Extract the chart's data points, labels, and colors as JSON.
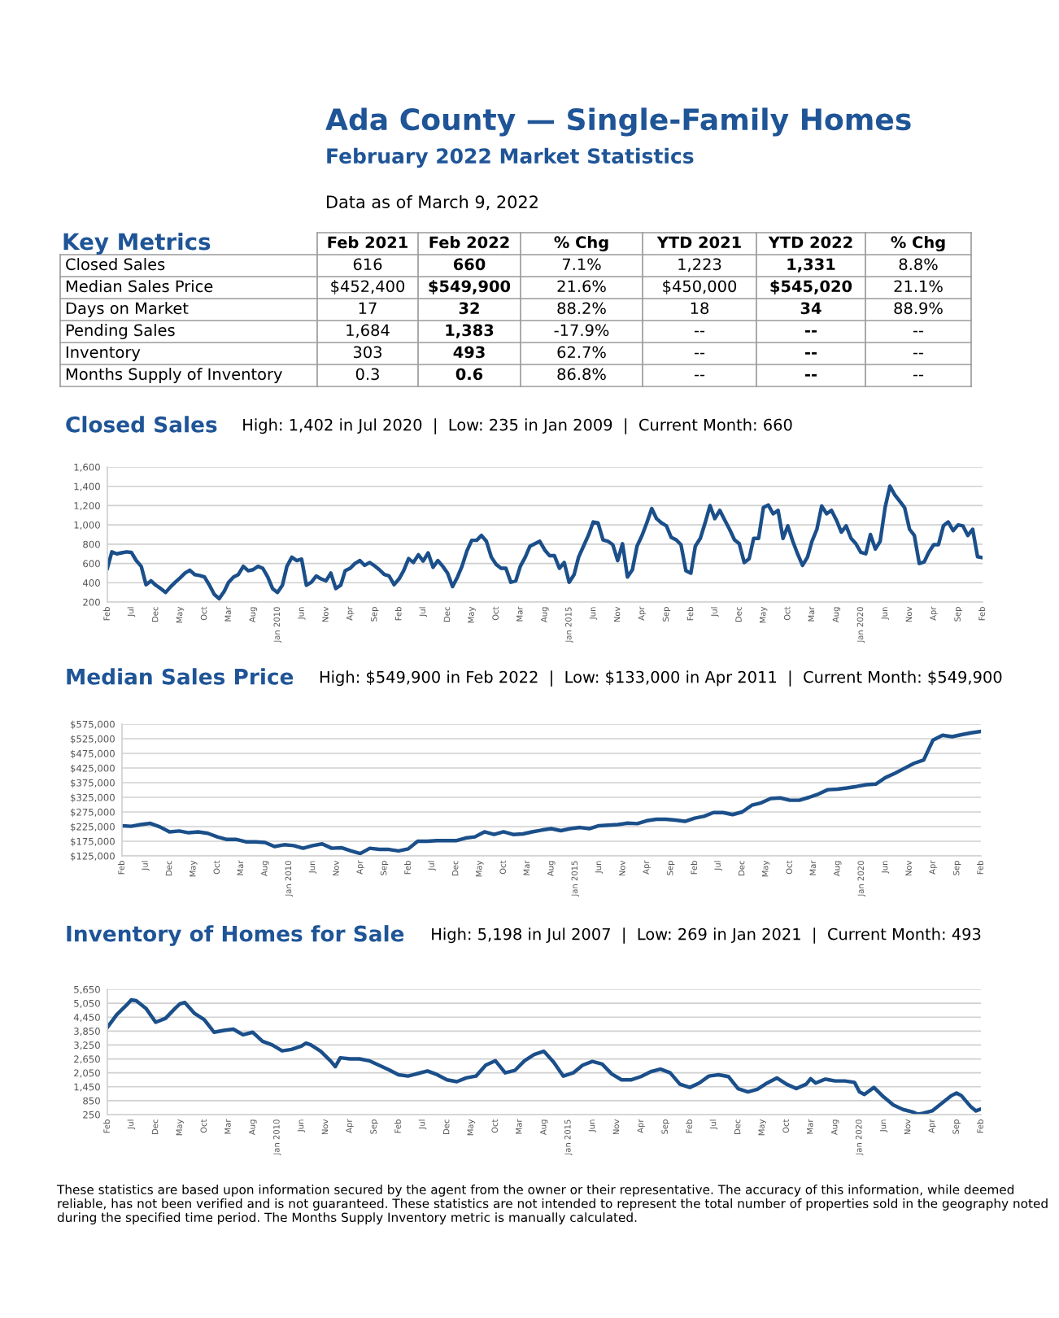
{
  "chart_data": [
    {
      "type": "other",
      "title": "Ada County — Single-Family Homes",
      "subtitle": "February 2022 Market Statistics",
      "annotations": [
        "Data as of March 9, 2022"
      ]
    },
    {
      "type": "other",
      "title": "Key Metrics",
      "categories": [
        "Feb 2021",
        "Feb 2022",
        "% Chg",
        "YTD 2021",
        "YTD 2022",
        "% Chg"
      ],
      "y_categories": [
        "Closed Sales",
        "Median Sales Price",
        "Days on Market",
        "Pending Sales",
        "Inventory",
        "Months Supply of Inventory"
      ],
      "cell_labels": [
        [
          "616",
          "660",
          "7.1%",
          "1,223",
          "1,331",
          "8.8%"
        ],
        [
          "$452,400",
          "$549,900",
          "21.6%",
          "$450,000",
          "$545,020",
          "21.1%"
        ],
        [
          "17",
          "32",
          "88.2%",
          "18",
          "34",
          "88.9%"
        ],
        [
          "1,684",
          "1,383",
          "-17.9%",
          "--",
          "--",
          "--"
        ],
        [
          "303",
          "493",
          "62.7%",
          "--",
          "--",
          "--"
        ],
        [
          "0.3",
          "0.6",
          "86.8%",
          "--",
          "--",
          "--"
        ]
      ]
    },
    {
      "type": "line",
      "title": "Closed Sales",
      "subtitle": "High: 1,402 in Jul 2020  |  Low: 235 in Jan 2009  |  Current Month: 660",
      "color": "#1b4f8a",
      "grid": "y",
      "marker": "none",
      "line_style": "solid",
      "x": [
        "2007-02",
        "2007-03",
        "2007-04",
        "2007-05",
        "2007-06",
        "2007-07",
        "2007-08",
        "2007-09",
        "2007-10",
        "2007-11",
        "2007-12",
        "2008-01",
        "2008-02",
        "2008-03",
        "2008-04",
        "2008-05",
        "2008-06",
        "2008-07",
        "2008-08",
        "2008-09",
        "2008-10",
        "2008-11",
        "2008-12",
        "2009-01",
        "2009-02",
        "2009-03",
        "2009-04",
        "2009-05",
        "2009-06",
        "2009-07",
        "2009-08",
        "2009-09",
        "2009-10",
        "2009-11",
        "2009-12",
        "2010-01",
        "2010-02",
        "2010-03",
        "2010-04",
        "2010-05",
        "2010-06",
        "2010-07",
        "2010-08",
        "2010-09",
        "2010-10",
        "2010-11",
        "2010-12",
        "2011-01",
        "2011-02",
        "2011-03",
        "2011-04",
        "2011-05",
        "2011-06",
        "2011-07",
        "2011-08",
        "2011-09",
        "2011-10",
        "2011-11",
        "2011-12",
        "2012-01",
        "2012-02",
        "2012-03",
        "2012-04",
        "2012-05",
        "2012-06",
        "2012-07",
        "2012-08",
        "2012-09",
        "2012-10",
        "2012-11",
        "2012-12",
        "2013-01",
        "2013-02",
        "2013-03",
        "2013-04",
        "2013-05",
        "2013-06",
        "2013-07",
        "2013-08",
        "2013-09",
        "2013-10",
        "2013-11",
        "2013-12",
        "2014-01",
        "2014-02",
        "2014-03",
        "2014-04",
        "2014-05",
        "2014-06",
        "2014-07",
        "2014-08",
        "2014-09",
        "2014-10",
        "2014-11",
        "2014-12",
        "2015-01",
        "2015-02",
        "2015-03",
        "2015-04",
        "2015-05",
        "2015-06",
        "2015-07",
        "2015-08",
        "2015-09",
        "2015-10",
        "2015-11",
        "2015-12",
        "2016-01",
        "2016-02",
        "2016-03",
        "2016-04",
        "2016-05",
        "2016-06",
        "2016-07",
        "2016-08",
        "2016-09",
        "2016-10",
        "2016-11",
        "2016-12",
        "2017-01",
        "2017-02",
        "2017-03",
        "2017-04",
        "2017-05",
        "2017-06",
        "2017-07",
        "2017-08",
        "2017-09",
        "2017-10",
        "2017-11",
        "2017-12",
        "2018-01",
        "2018-02",
        "2018-03",
        "2018-04",
        "2018-05",
        "2018-06",
        "2018-07",
        "2018-08",
        "2018-09",
        "2018-10",
        "2018-11",
        "2018-12",
        "2019-01",
        "2019-02",
        "2019-03",
        "2019-04",
        "2019-05",
        "2019-06",
        "2019-07",
        "2019-08",
        "2019-09",
        "2019-10",
        "2019-11",
        "2019-12",
        "2020-01",
        "2020-02",
        "2020-03",
        "2020-04",
        "2020-05",
        "2020-06",
        "2020-07",
        "2020-08",
        "2020-09",
        "2020-10",
        "2020-11",
        "2020-12",
        "2021-01",
        "2021-02",
        "2021-03",
        "2021-04",
        "2021-05",
        "2021-06",
        "2021-07",
        "2021-08",
        "2021-09",
        "2021-10",
        "2021-11",
        "2021-12",
        "2022-01",
        "2022-02"
      ],
      "values": [
        550,
        720,
        700,
        710,
        720,
        715,
        630,
        570,
        380,
        420,
        375,
        340,
        300,
        355,
        405,
        450,
        500,
        530,
        485,
        475,
        460,
        375,
        280,
        235,
        310,
        405,
        460,
        485,
        570,
        525,
        535,
        570,
        550,
        460,
        340,
        300,
        375,
        570,
        665,
        630,
        645,
        375,
        405,
        470,
        440,
        420,
        500,
        340,
        375,
        525,
        550,
        600,
        630,
        580,
        610,
        575,
        535,
        485,
        470,
        380,
        440,
        525,
        650,
        610,
        690,
        625,
        710,
        560,
        630,
        570,
        500,
        360,
        460,
        570,
        730,
        840,
        840,
        890,
        830,
        665,
        590,
        550,
        550,
        405,
        420,
        570,
        665,
        780,
        805,
        830,
        740,
        680,
        680,
        550,
        610,
        405,
        485,
        665,
        780,
        890,
        1030,
        1020,
        845,
        830,
        795,
        630,
        805,
        460,
        535,
        780,
        890,
        1020,
        1170,
        1065,
        1020,
        990,
        870,
        845,
        795,
        525,
        500,
        780,
        860,
        1020,
        1200,
        1065,
        1150,
        1050,
        955,
        845,
        805,
        610,
        650,
        860,
        860,
        1180,
        1205,
        1115,
        1150,
        860,
        990,
        830,
        700,
        580,
        665,
        830,
        955,
        1195,
        1115,
        1150,
        1050,
        925,
        990,
        860,
        805,
        715,
        700,
        900,
        750,
        830,
        1180,
        1402,
        1310,
        1245,
        1180,
        955,
        890,
        600,
        616,
        715,
        795,
        795,
        990,
        1030,
        940,
        1000,
        990,
        890,
        955,
        670,
        660
      ],
      "xlim": [
        "2007-02",
        "2022-02"
      ],
      "xticks": [
        {
          "value": "2007-02",
          "label": "Feb"
        },
        {
          "value": "2007-07",
          "label": "Jul"
        },
        {
          "value": "2007-12",
          "label": "Dec"
        },
        {
          "value": "2008-05",
          "label": "May"
        },
        {
          "value": "2008-10",
          "label": "Oct"
        },
        {
          "value": "2009-03",
          "label": "Mar"
        },
        {
          "value": "2009-08",
          "label": "Aug"
        },
        {
          "value": "2010-01",
          "label": "Jan 2010"
        },
        {
          "value": "2010-06",
          "label": "Jun"
        },
        {
          "value": "2010-11",
          "label": "Nov"
        },
        {
          "value": "2011-04",
          "label": "Apr"
        },
        {
          "value": "2011-09",
          "label": "Sep"
        },
        {
          "value": "2012-02",
          "label": "Feb"
        },
        {
          "value": "2012-07",
          "label": "Jul"
        },
        {
          "value": "2012-12",
          "label": "Dec"
        },
        {
          "value": "2013-05",
          "label": "May"
        },
        {
          "value": "2013-10",
          "label": "Oct"
        },
        {
          "value": "2014-03",
          "label": "Mar"
        },
        {
          "value": "2014-08",
          "label": "Aug"
        },
        {
          "value": "2015-01",
          "label": "Jan 2015"
        },
        {
          "value": "2015-06",
          "label": "Jun"
        },
        {
          "value": "2015-11",
          "label": "Nov"
        },
        {
          "value": "2016-04",
          "label": "Apr"
        },
        {
          "value": "2016-09",
          "label": "Sep"
        },
        {
          "value": "2017-02",
          "label": "Feb"
        },
        {
          "value": "2017-07",
          "label": "Jul"
        },
        {
          "value": "2017-12",
          "label": "Dec"
        },
        {
          "value": "2018-05",
          "label": "May"
        },
        {
          "value": "2018-10",
          "label": "Oct"
        },
        {
          "value": "2019-03",
          "label": "Mar"
        },
        {
          "value": "2019-08",
          "label": "Aug"
        },
        {
          "value": "2020-01",
          "label": "Jan 2020"
        },
        {
          "value": "2020-06",
          "label": "Jun"
        },
        {
          "value": "2020-11",
          "label": "Nov"
        },
        {
          "value": "2021-04",
          "label": "Apr"
        },
        {
          "value": "2021-09",
          "label": "Sep"
        },
        {
          "value": "2022-02",
          "label": "Feb"
        }
      ],
      "ylim": [
        200,
        1600
      ],
      "yticks": [
        200,
        400,
        600,
        800,
        {
          "value": 1000,
          "label": "1,000"
        },
        {
          "value": 1200,
          "label": "1,200"
        },
        {
          "value": 1400,
          "label": "1,400"
        },
        {
          "value": 1600,
          "label": "1,600"
        }
      ]
    },
    {
      "type": "line",
      "title": "Median Sales Price",
      "subtitle": "High: $549,900 in Feb 2022  |  Low: $133,000 in Apr 2011  |  Current Month: $549,900",
      "color": "#1b4f8a",
      "grid": "y",
      "marker": "none",
      "line_style": "solid",
      "x": [
        "2007-02",
        "2007-04",
        "2007-06",
        "2007-08",
        "2007-10",
        "2007-12",
        "2008-02",
        "2008-04",
        "2008-06",
        "2008-08",
        "2008-10",
        "2008-12",
        "2009-02",
        "2009-04",
        "2009-06",
        "2009-08",
        "2009-10",
        "2009-12",
        "2010-02",
        "2010-04",
        "2010-06",
        "2010-08",
        "2010-10",
        "2010-12",
        "2011-02",
        "2011-04",
        "2011-06",
        "2011-08",
        "2011-10",
        "2011-12",
        "2012-02",
        "2012-04",
        "2012-06",
        "2012-08",
        "2012-10",
        "2012-12",
        "2013-02",
        "2013-04",
        "2013-06",
        "2013-08",
        "2013-10",
        "2013-12",
        "2014-02",
        "2014-04",
        "2014-06",
        "2014-08",
        "2014-10",
        "2014-12",
        "2015-02",
        "2015-04",
        "2015-06",
        "2015-08",
        "2015-10",
        "2015-12",
        "2016-02",
        "2016-04",
        "2016-06",
        "2016-08",
        "2016-10",
        "2016-12",
        "2017-02",
        "2017-04",
        "2017-06",
        "2017-08",
        "2017-10",
        "2017-12",
        "2018-02",
        "2018-04",
        "2018-06",
        "2018-08",
        "2018-10",
        "2018-12",
        "2019-02",
        "2019-04",
        "2019-06",
        "2019-08",
        "2019-10",
        "2019-12",
        "2020-02",
        "2020-04",
        "2020-06",
        "2020-08",
        "2020-10",
        "2020-12",
        "2021-02",
        "2021-04",
        "2021-06",
        "2021-08",
        "2021-10",
        "2021-12",
        "2022-02"
      ],
      "values": [
        228000,
        226000,
        232000,
        236000,
        224000,
        207000,
        210000,
        204000,
        207000,
        202000,
        190000,
        181000,
        181000,
        173000,
        173000,
        171000,
        157000,
        163000,
        160000,
        151000,
        160000,
        166000,
        151000,
        153000,
        142000,
        133000,
        151000,
        147000,
        147000,
        142000,
        149000,
        175000,
        175000,
        177000,
        177000,
        177000,
        186000,
        190000,
        207000,
        198000,
        207000,
        198000,
        200000,
        207000,
        213000,
        218000,
        211000,
        218000,
        222000,
        218000,
        228000,
        230000,
        232000,
        237000,
        235000,
        245000,
        250000,
        250000,
        247000,
        243000,
        254000,
        260000,
        273000,
        273000,
        266000,
        275000,
        298000,
        306000,
        321000,
        323000,
        315000,
        315000,
        325000,
        336000,
        351000,
        353000,
        357000,
        362000,
        368000,
        370000,
        392000,
        407000,
        424000,
        441000,
        452400,
        520000,
        537000,
        532000,
        539000,
        545000,
        549900
      ],
      "xlim": [
        "2007-02",
        "2022-02"
      ],
      "xticks": [
        {
          "value": "2007-02",
          "label": "Feb"
        },
        {
          "value": "2007-07",
          "label": "Jul"
        },
        {
          "value": "2007-12",
          "label": "Dec"
        },
        {
          "value": "2008-05",
          "label": "May"
        },
        {
          "value": "2008-10",
          "label": "Oct"
        },
        {
          "value": "2009-03",
          "label": "Mar"
        },
        {
          "value": "2009-08",
          "label": "Aug"
        },
        {
          "value": "2010-01",
          "label": "Jan 2010"
        },
        {
          "value": "2010-06",
          "label": "Jun"
        },
        {
          "value": "2010-11",
          "label": "Nov"
        },
        {
          "value": "2011-04",
          "label": "Apr"
        },
        {
          "value": "2011-09",
          "label": "Sep"
        },
        {
          "value": "2012-02",
          "label": "Feb"
        },
        {
          "value": "2012-07",
          "label": "Jul"
        },
        {
          "value": "2012-12",
          "label": "Dec"
        },
        {
          "value": "2013-05",
          "label": "May"
        },
        {
          "value": "2013-10",
          "label": "Oct"
        },
        {
          "value": "2014-03",
          "label": "Mar"
        },
        {
          "value": "2014-08",
          "label": "Aug"
        },
        {
          "value": "2015-01",
          "label": "Jan 2015"
        },
        {
          "value": "2015-06",
          "label": "Jun"
        },
        {
          "value": "2015-11",
          "label": "Nov"
        },
        {
          "value": "2016-04",
          "label": "Apr"
        },
        {
          "value": "2016-09",
          "label": "Sep"
        },
        {
          "value": "2017-02",
          "label": "Feb"
        },
        {
          "value": "2017-07",
          "label": "Jul"
        },
        {
          "value": "2017-12",
          "label": "Dec"
        },
        {
          "value": "2018-05",
          "label": "May"
        },
        {
          "value": "2018-10",
          "label": "Oct"
        },
        {
          "value": "2019-03",
          "label": "Mar"
        },
        {
          "value": "2019-08",
          "label": "Aug"
        },
        {
          "value": "2020-01",
          "label": "Jan 2020"
        },
        {
          "value": "2020-06",
          "label": "Jun"
        },
        {
          "value": "2020-11",
          "label": "Nov"
        },
        {
          "value": "2021-04",
          "label": "Apr"
        },
        {
          "value": "2021-09",
          "label": "Sep"
        },
        {
          "value": "2022-02",
          "label": "Feb"
        }
      ],
      "ylim": [
        125000,
        575000
      ],
      "yticks": [
        {
          "value": 125000,
          "label": "$125,000"
        },
        {
          "value": 175000,
          "label": "$175,000"
        },
        {
          "value": 225000,
          "label": "$225,000"
        },
        {
          "value": 275000,
          "label": "$275,000"
        },
        {
          "value": 325000,
          "label": "$325,000"
        },
        {
          "value": 375000,
          "label": "$375,000"
        },
        {
          "value": 425000,
          "label": "$425,000"
        },
        {
          "value": 475000,
          "label": "$475,000"
        },
        {
          "value": 525000,
          "label": "$525,000"
        },
        {
          "value": 575000,
          "label": "$575,000"
        }
      ]
    },
    {
      "type": "line",
      "title": "Inventory of Homes for Sale",
      "subtitle": "High: 5,198 in Jul 2007  |  Low: 269 in Jan 2021  |  Current Month: 493",
      "color": "#1b4f8a",
      "grid": "y",
      "marker": "none",
      "line_style": "solid",
      "x": [
        "2007-02",
        "2007-04",
        "2007-06",
        "2007-07",
        "2007-08",
        "2007-10",
        "2007-12",
        "2008-02",
        "2008-04",
        "2008-05",
        "2008-06",
        "2008-08",
        "2008-10",
        "2008-12",
        "2009-02",
        "2009-04",
        "2009-06",
        "2009-08",
        "2009-10",
        "2009-12",
        "2010-02",
        "2010-04",
        "2010-06",
        "2010-07",
        "2010-08",
        "2010-10",
        "2010-12",
        "2011-01",
        "2011-02",
        "2011-04",
        "2011-06",
        "2011-08",
        "2011-10",
        "2011-12",
        "2012-02",
        "2012-04",
        "2012-06",
        "2012-08",
        "2012-10",
        "2012-12",
        "2013-02",
        "2013-04",
        "2013-06",
        "2013-08",
        "2013-10",
        "2013-12",
        "2014-02",
        "2014-04",
        "2014-06",
        "2014-08",
        "2014-10",
        "2014-12",
        "2015-02",
        "2015-04",
        "2015-06",
        "2015-08",
        "2015-10",
        "2015-12",
        "2016-02",
        "2016-04",
        "2016-06",
        "2016-08",
        "2016-10",
        "2016-12",
        "2017-02",
        "2017-04",
        "2017-06",
        "2017-08",
        "2017-10",
        "2017-12",
        "2018-02",
        "2018-04",
        "2018-06",
        "2018-08",
        "2018-10",
        "2018-12",
        "2019-02",
        "2019-03",
        "2019-04",
        "2019-06",
        "2019-08",
        "2019-10",
        "2019-12",
        "2020-01",
        "2020-02",
        "2020-04",
        "2020-06",
        "2020-08",
        "2020-10",
        "2020-12",
        "2021-01",
        "2021-02",
        "2021-04",
        "2021-06",
        "2021-08",
        "2021-09",
        "2021-10",
        "2021-12",
        "2022-01",
        "2022-02"
      ],
      "values": [
        4010,
        4560,
        4970,
        5198,
        5160,
        4830,
        4230,
        4400,
        4830,
        5020,
        5080,
        4610,
        4340,
        3800,
        3880,
        3930,
        3690,
        3800,
        3410,
        3250,
        3000,
        3060,
        3200,
        3330,
        3250,
        2980,
        2570,
        2320,
        2700,
        2650,
        2650,
        2570,
        2380,
        2190,
        1970,
        1910,
        2020,
        2130,
        1970,
        1750,
        1670,
        1830,
        1910,
        2380,
        2570,
        2050,
        2160,
        2570,
        2840,
        2980,
        2510,
        1910,
        2050,
        2380,
        2540,
        2430,
        2000,
        1750,
        1750,
        1890,
        2100,
        2210,
        2050,
        1560,
        1420,
        1610,
        1910,
        1970,
        1890,
        1370,
        1230,
        1340,
        1610,
        1830,
        1560,
        1370,
        1560,
        1800,
        1610,
        1780,
        1700,
        1700,
        1640,
        1230,
        1120,
        1420,
        1010,
        660,
        470,
        360,
        269,
        303,
        410,
        740,
        1070,
        1180,
        1070,
        580,
        410,
        493
      ],
      "xlim": [
        "2007-02",
        "2022-02"
      ],
      "xticks": [
        {
          "value": "2007-02",
          "label": "Feb"
        },
        {
          "value": "2007-07",
          "label": "Jul"
        },
        {
          "value": "2007-12",
          "label": "Dec"
        },
        {
          "value": "2008-05",
          "label": "May"
        },
        {
          "value": "2008-10",
          "label": "Oct"
        },
        {
          "value": "2009-03",
          "label": "Mar"
        },
        {
          "value": "2009-08",
          "label": "Aug"
        },
        {
          "value": "2010-01",
          "label": "Jan 2010"
        },
        {
          "value": "2010-06",
          "label": "Jun"
        },
        {
          "value": "2010-11",
          "label": "Nov"
        },
        {
          "value": "2011-04",
          "label": "Apr"
        },
        {
          "value": "2011-09",
          "label": "Sep"
        },
        {
          "value": "2012-02",
          "label": "Feb"
        },
        {
          "value": "2012-07",
          "label": "Jul"
        },
        {
          "value": "2012-12",
          "label": "Dec"
        },
        {
          "value": "2013-05",
          "label": "May"
        },
        {
          "value": "2013-10",
          "label": "Oct"
        },
        {
          "value": "2014-03",
          "label": "Mar"
        },
        {
          "value": "2014-08",
          "label": "Aug"
        },
        {
          "value": "2015-01",
          "label": "Jan 2015"
        },
        {
          "value": "2015-06",
          "label": "Jun"
        },
        {
          "value": "2015-11",
          "label": "Nov"
        },
        {
          "value": "2016-04",
          "label": "Apr"
        },
        {
          "value": "2016-09",
          "label": "Sep"
        },
        {
          "value": "2017-02",
          "label": "Feb"
        },
        {
          "value": "2017-07",
          "label": "Jul"
        },
        {
          "value": "2017-12",
          "label": "Dec"
        },
        {
          "value": "2018-05",
          "label": "May"
        },
        {
          "value": "2018-10",
          "label": "Oct"
        },
        {
          "value": "2019-03",
          "label": "Mar"
        },
        {
          "value": "2019-08",
          "label": "Aug"
        },
        {
          "value": "2020-01",
          "label": "Jan 2020"
        },
        {
          "value": "2020-06",
          "label": "Jun"
        },
        {
          "value": "2020-11",
          "label": "Nov"
        },
        {
          "value": "2021-04",
          "label": "Apr"
        },
        {
          "value": "2021-09",
          "label": "Sep"
        },
        {
          "value": "2022-02",
          "label": "Feb"
        }
      ],
      "ylim": [
        250,
        5650
      ],
      "yticks": [
        250,
        850,
        {
          "value": 1450,
          "label": "1,450"
        },
        {
          "value": 2050,
          "label": "2,050"
        },
        {
          "value": 2650,
          "label": "2,650"
        },
        {
          "value": 3250,
          "label": "3,250"
        },
        {
          "value": 3850,
          "label": "3,850"
        },
        {
          "value": 4450,
          "label": "4,450"
        },
        {
          "value": 5050,
          "label": "5,050"
        },
        {
          "value": 5650,
          "label": "5,650"
        }
      ],
      "annotations": [
        "These statistics are based upon information secured by the agent from the owner or their representative. The accuracy of this information, while deemed reliable, has not been verified and is not guaranteed. These statistics are not intended to represent the total number of properties sold in the geography noted during the specified time period. The Months Supply Inventory metric is manually calculated."
      ]
    }
  ]
}
